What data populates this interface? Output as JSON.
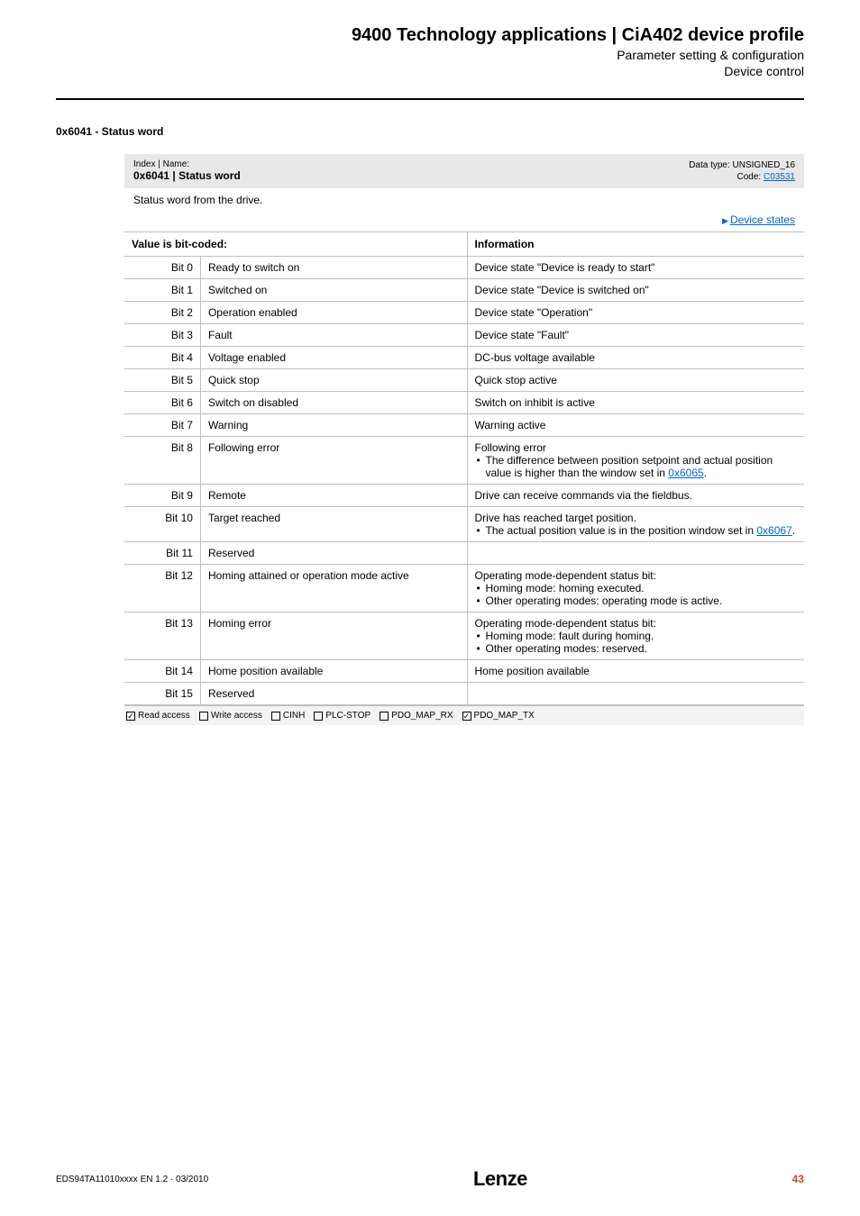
{
  "header": {
    "title": "9400 Technology applications | CiA402 device profile",
    "subtitle1": "Parameter setting & configuration",
    "subtitle2": "Device control"
  },
  "section": {
    "heading": "0x6041 - Status word"
  },
  "param": {
    "index_label": "Index | Name:",
    "index_name": "0x6041 | Status word",
    "datatype_label": "Data type: UNSIGNED_16",
    "code_label": "Code: ",
    "code_link": "C03531",
    "description": "Status word from the drive.",
    "device_states_link": "Device states"
  },
  "table": {
    "col_value": "Value is bit-coded:",
    "col_info": "Information",
    "rows": [
      {
        "bit": "Bit 0",
        "name": "Ready to switch on",
        "info": "Device state \"Device is ready to start\""
      },
      {
        "bit": "Bit 1",
        "name": "Switched on",
        "info": "Device state \"Device is switched on\""
      },
      {
        "bit": "Bit 2",
        "name": "Operation enabled",
        "info": "Device state \"Operation\""
      },
      {
        "bit": "Bit 3",
        "name": "Fault",
        "info": "Device state \"Fault\""
      },
      {
        "bit": "Bit 4",
        "name": "Voltage enabled",
        "info": "DC-bus voltage available"
      },
      {
        "bit": "Bit 5",
        "name": "Quick stop",
        "info": "Quick stop active"
      },
      {
        "bit": "Bit 6",
        "name": "Switch on disabled",
        "info": "Switch on inhibit is active"
      },
      {
        "bit": "Bit 7",
        "name": "Warning",
        "info": "Warning active"
      },
      {
        "bit": "Bit 8",
        "name": "Following error",
        "info_main": "Following error",
        "info_bullets": [
          "The difference between position setpoint and actual position value is higher than the window set in "
        ],
        "info_link": "0x6065",
        "info_tail": "."
      },
      {
        "bit": "Bit 9",
        "name": "Remote",
        "info": "Drive can receive commands via the fieldbus."
      },
      {
        "bit": "Bit 10",
        "name": "Target reached",
        "info_main": "Drive has reached target position.",
        "info_bullets": [
          "The actual position value is in the position window set in "
        ],
        "info_link": "0x6067",
        "info_tail": "."
      },
      {
        "bit": "Bit 11",
        "name": "Reserved",
        "info": ""
      },
      {
        "bit": "Bit 12",
        "name": "Homing attained or operation mode active",
        "info_main": "Operating mode-dependent status bit:",
        "info_bullets_plain": [
          "Homing mode: homing executed.",
          "Other operating modes: operating mode is active."
        ]
      },
      {
        "bit": "Bit 13",
        "name": "Homing error",
        "info_main": "Operating mode-dependent status bit:",
        "info_bullets_plain": [
          "Homing mode: fault during homing.",
          "Other operating modes: reserved."
        ]
      },
      {
        "bit": "Bit 14",
        "name": "Home position available",
        "info": "Home position available"
      },
      {
        "bit": "Bit 15",
        "name": "Reserved",
        "info": ""
      }
    ]
  },
  "access": {
    "items": [
      {
        "checked": true,
        "label": "Read access"
      },
      {
        "checked": false,
        "label": "Write access"
      },
      {
        "checked": false,
        "label": "CINH"
      },
      {
        "checked": false,
        "label": "PLC-STOP"
      },
      {
        "checked": false,
        "label": "PDO_MAP_RX"
      },
      {
        "checked": true,
        "label": "PDO_MAP_TX"
      }
    ]
  },
  "footer": {
    "doc_id": "EDS94TA11010xxxx EN 1.2 · 03/2010",
    "logo": "Lenze",
    "page": "43"
  },
  "colors": {
    "link": "#0066cc",
    "pagenum": "#c04a2f",
    "header_bg": "#e8e8e8",
    "border": "#bfbfbf"
  }
}
